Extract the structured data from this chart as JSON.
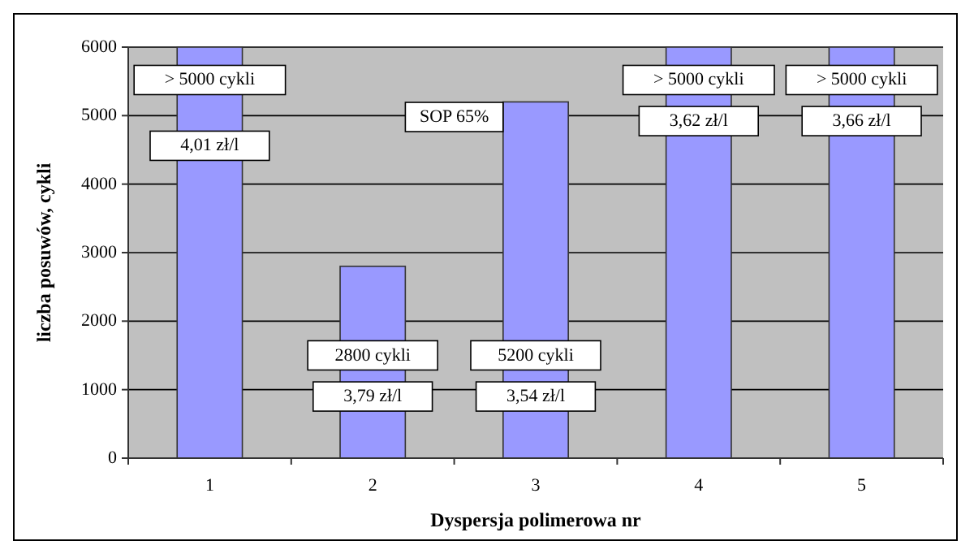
{
  "chart_data": {
    "type": "bar",
    "xlabel": "Dyspersja polimerowa nr",
    "ylabel": "liczba posuwów, cykli",
    "categories": [
      "1",
      "2",
      "3",
      "4",
      "5"
    ],
    "values": [
      6000,
      2800,
      5200,
      6000,
      6000
    ],
    "color": "#9999ff",
    "ylim": [
      0,
      6000
    ],
    "yticks": [
      0,
      1000,
      2000,
      3000,
      4000,
      5000,
      6000
    ],
    "grid": "y",
    "annotations": [
      "> 5000 cykli",
      "4,01 zł/l",
      "SOP 65%",
      "2800 cykli",
      "3,79 zł/l",
      "5200 cykli",
      "3,54 zł/l",
      "> 5000 cykli",
      "3,62 zł/l",
      "> 5000 cykli",
      "3,66 zł/l"
    ]
  }
}
